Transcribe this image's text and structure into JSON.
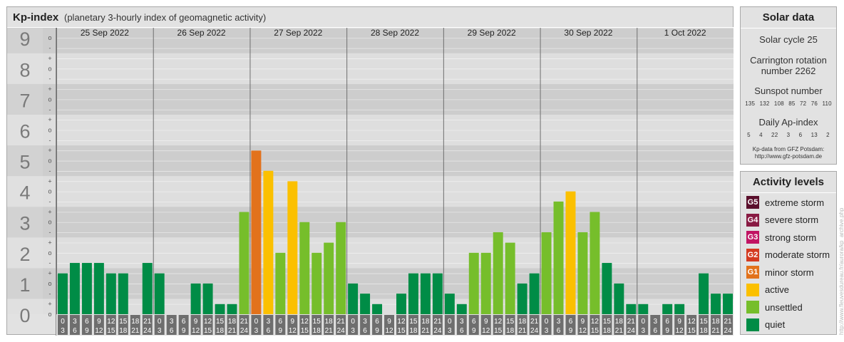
{
  "header": {
    "title": "Kp-index",
    "subtitle": "(planetary 3-hourly index of geomagnetic activity)"
  },
  "chart_data": {
    "type": "bar",
    "title": "Kp-index",
    "subtitle": "(planetary 3-hourly index of geomagnetic activity)",
    "y_tick_labels": [
      "0",
      "1",
      "2",
      "3",
      "4",
      "5",
      "6",
      "7",
      "8",
      "9"
    ],
    "y_minor_labels": [
      "o",
      "+",
      "-"
    ],
    "ylim": [
      0,
      9.33
    ],
    "grid": true,
    "days": [
      "25 Sep 2022",
      "26 Sep 2022",
      "27 Sep 2022",
      "28 Sep 2022",
      "29 Sep 2022",
      "30 Sep 2022",
      "1 Oct 2022"
    ],
    "interval_start_labels": [
      "0",
      "3",
      "6",
      "9",
      "12",
      "15",
      "18",
      "21"
    ],
    "interval_end_labels": [
      "3",
      "6",
      "9",
      "12",
      "15",
      "18",
      "21",
      "24"
    ],
    "series": [
      {
        "values": [
          1.33,
          1.67,
          1.67,
          1.67,
          1.33,
          1.33,
          0.0,
          1.67,
          1.33,
          0.0,
          0.0,
          1.0,
          1.0,
          0.33,
          0.33,
          3.33,
          5.33,
          4.67,
          2.0,
          4.33,
          3.0,
          2.0,
          2.33,
          3.0,
          1.0,
          0.67,
          0.33,
          0.0,
          0.67,
          1.33,
          1.33,
          1.33,
          0.67,
          0.33,
          2.0,
          2.0,
          2.67,
          2.33,
          1.0,
          1.33,
          2.67,
          3.67,
          4.0,
          2.67,
          3.33,
          1.67,
          1.0,
          0.33,
          0.33,
          0.0,
          0.33,
          0.33,
          0.0,
          1.33,
          0.67,
          0.67
        ]
      }
    ]
  },
  "solar": {
    "title": "Solar data",
    "cycle": "Solar cycle 25",
    "carrington_line1": "Carrington rotation",
    "carrington_line2": "number 2262",
    "sunspot_label": "Sunspot number",
    "sunspot_values": [
      "135",
      "132",
      "108",
      "85",
      "72",
      "76",
      "110"
    ],
    "ap_label": "Daily Ap-index",
    "ap_values": [
      "5",
      "4",
      "22",
      "3",
      "6",
      "13",
      "2"
    ],
    "source_line1": "Kp-data from GFZ Potsdam:",
    "source_line2": "http://www.gfz-potsdam.de"
  },
  "activity": {
    "title": "Activity levels",
    "levels": [
      {
        "badge": "G5",
        "label": "extreme storm",
        "color": "#5a0f2c"
      },
      {
        "badge": "G4",
        "label": "severe storm",
        "color": "#891b43"
      },
      {
        "badge": "G3",
        "label": "strong storm",
        "color": "#c11463"
      },
      {
        "badge": "G2",
        "label": "moderate storm",
        "color": "#d43a20"
      },
      {
        "badge": "G1",
        "label": "minor storm",
        "color": "#e2721c"
      },
      {
        "badge": "",
        "label": "active",
        "color": "#fbc000"
      },
      {
        "badge": "",
        "label": "unsettled",
        "color": "#76be2b"
      },
      {
        "badge": "",
        "label": "quiet",
        "color": "#008c46"
      }
    ]
  },
  "colors": {
    "quiet": "#008c46",
    "unsettled": "#76be2b",
    "active": "#fbc000",
    "minor_storm": "#e2721c",
    "moderate_storm": "#d43a20"
  },
  "watermark": "http://www.fleuvesdureau.fr/aurora/kp_archive.php"
}
